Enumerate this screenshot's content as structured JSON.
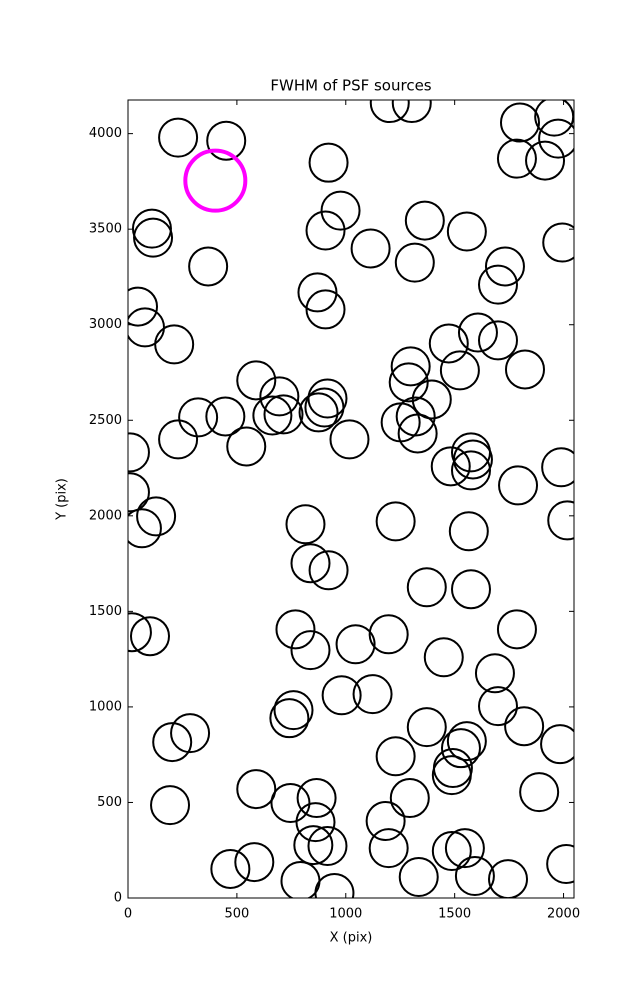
{
  "chart_data": {
    "type": "scatter",
    "title": "FWHM of PSF sources",
    "x_label": "X (pix)",
    "y_label": "Y (pix)",
    "xlim": [
      0,
      2048
    ],
    "ylim": [
      0,
      4176
    ],
    "xticks": [
      0,
      500,
      1000,
      1500,
      2000
    ],
    "yticks": [
      0,
      500,
      1000,
      1500,
      2000,
      2500,
      3000,
      3500,
      4000
    ],
    "series": [
      {
        "color": "#000000",
        "marker_size": 19,
        "line_width": 2,
        "x": [
          230,
          451,
          921,
          1202,
          1303,
          1800,
          1957,
          1975,
          1786,
          1915,
          110,
          115,
          976,
          907,
          1363,
          1556,
          1114,
          1317,
          1994,
          368,
          1731,
          1699,
          46,
          78,
          870,
          907,
          212,
          1607,
          1473,
          1699,
          1298,
          1823,
          1524,
          589,
          695,
          1289,
          1395,
          916,
          902,
          322,
          447,
          663,
          714,
          875,
          1252,
          1321,
          1330,
          230,
          1017,
          543,
          9,
          1575,
          1584,
          1482,
          1575,
          1989,
          9,
          1791,
          129,
          64,
          815,
          1229,
          1565,
          2017,
          838,
          921,
          1372,
          1575,
          18,
          101,
          769,
          838,
          1045,
          1197,
          1786,
          1450,
          1685,
          1699,
          981,
          1123,
          760,
          741,
          1372,
          1819,
          285,
          203,
          1229,
          1556,
          1529,
          1984,
          1492,
          1487,
          589,
          746,
          866,
          193,
          1294,
          1888,
          861,
          1183,
          851,
          916,
          1197,
          1487,
          1547,
          470,
          580,
          792,
          948,
          1335,
          1593,
          1745,
          2012
        ],
        "values": [
          3979,
          3963,
          3848,
          4160,
          4160,
          4058,
          4089,
          3974,
          3869,
          3859,
          3503,
          3456,
          3597,
          3493,
          3545,
          3488,
          3399,
          3325,
          3430,
          3305,
          3305,
          3210,
          3095,
          2986,
          3169,
          3080,
          2897,
          2959,
          2902,
          2918,
          2782,
          2766,
          2761,
          2709,
          2625,
          2698,
          2609,
          2614,
          2567,
          2515,
          2520,
          2525,
          2531,
          2541,
          2489,
          2520,
          2431,
          2400,
          2400,
          2363,
          2332,
          2332,
          2295,
          2259,
          2238,
          2254,
          2123,
          2159,
          1997,
          1935,
          1956,
          1971,
          1919,
          1976,
          1752,
          1715,
          1626,
          1616,
          1391,
          1370,
          1406,
          1297,
          1328,
          1380,
          1406,
          1260,
          1176,
          1004,
          1061,
          1067,
          983,
          941,
          894,
          899,
          863,
          816,
          742,
          821,
          784,
          805,
          680,
          643,
          570,
          497,
          523,
          486,
          523,
          554,
          397,
          403,
          277,
          272,
          261,
          246,
          261,
          152,
          188,
          89,
          26,
          110,
          115,
          99,
          178
        ]
      },
      {
        "color": "#ff00ff",
        "marker_size": 30,
        "line_width": 4,
        "x": [
          401
        ],
        "values": [
          3754
        ]
      }
    ]
  }
}
